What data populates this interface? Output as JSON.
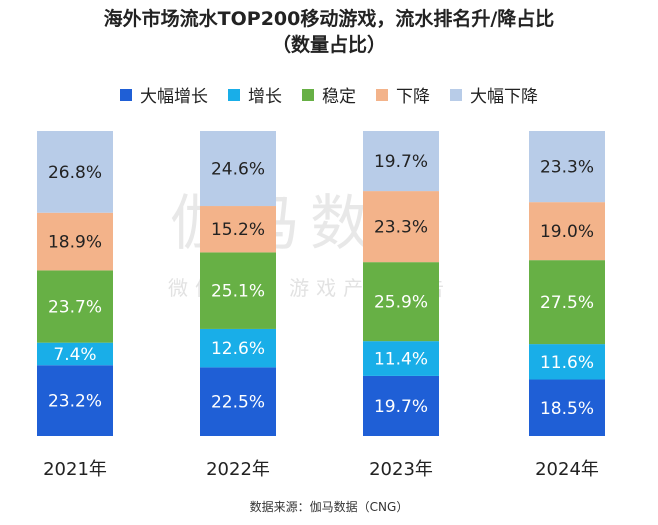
{
  "title_line1": "海外市场流水TOP200移动游戏，流水排名升/降占比",
  "title_line2": "（数量占比）",
  "watermark": {
    "main": "伽马数据",
    "sub": "微信号 · 游戏产业报告"
  },
  "source": "数据来源：伽马数据（CNG）",
  "chart_data": {
    "type": "bar",
    "stacked": true,
    "stacking": "percent",
    "categories": [
      "2021年",
      "2022年",
      "2023年",
      "2024年"
    ],
    "series": [
      {
        "name": "大幅增长",
        "color": "#1F5FD6",
        "values": [
          23.2,
          22.5,
          19.7,
          18.5
        ],
        "labels": [
          "23.2%",
          "22.5%",
          "19.7%",
          "18.5%"
        ]
      },
      {
        "name": "增长",
        "color": "#19AEE8",
        "values": [
          7.4,
          12.6,
          11.4,
          11.6
        ],
        "labels": [
          "7.4%",
          "12.6%",
          "11.4%",
          "11.6%"
        ]
      },
      {
        "name": "稳定",
        "color": "#67B045",
        "values": [
          23.7,
          25.1,
          25.9,
          27.5
        ],
        "labels": [
          "23.7%",
          "25.1%",
          "25.9%",
          "27.5%"
        ]
      },
      {
        "name": "下降",
        "color": "#F3B38A",
        "values": [
          18.9,
          15.2,
          23.3,
          19.0
        ],
        "labels": [
          "18.9%",
          "15.2%",
          "23.3%",
          "19.0%"
        ]
      },
      {
        "name": "大幅下降",
        "color": "#B8CCE8",
        "values": [
          26.8,
          24.6,
          19.7,
          23.3
        ],
        "labels": [
          "26.8%",
          "24.6%",
          "19.7%",
          "23.3%"
        ]
      }
    ],
    "label_colors": [
      "#ffffff",
      "#ffffff",
      "#ffffff",
      "#222222",
      "#222222"
    ],
    "legend_position": "top",
    "grid": false
  }
}
